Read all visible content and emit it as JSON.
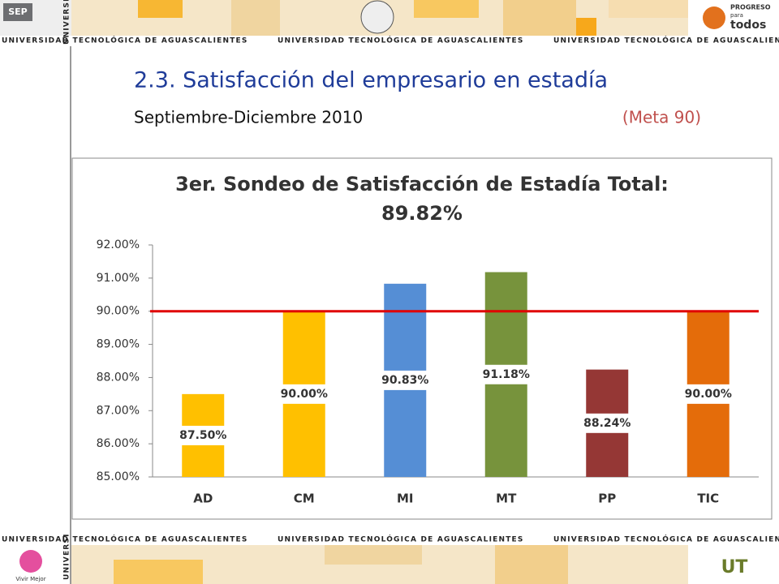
{
  "header": {
    "banner": "UNIVERSIDAD TECNOLÓGICA DE AGUASCALIENTES",
    "left_logo": "SEP",
    "right_logo": [
      "PROGRESO",
      "para",
      "todos"
    ],
    "bottom_logo": "Vivir Mejor"
  },
  "slide": {
    "title": "2.3. Satisfacción del empresario en estadía",
    "period": "Septiembre-Diciembre 2010",
    "goal": "(Meta 90)"
  },
  "chart_data": {
    "type": "bar",
    "title": [
      "3er. Sondeo de Satisfacción de Estadía Total:",
      "89.82%"
    ],
    "categories": [
      "AD",
      "CM",
      "MI",
      "MT",
      "PP",
      "TIC"
    ],
    "values": [
      87.5,
      90,
      90.83,
      91.18,
      88.24,
      90
    ],
    "value_labels": [
      "87.50%",
      "90.00%",
      "90.83%",
      "91.18%",
      "88.24%",
      "90.00%"
    ],
    "colors": [
      "#ffc000",
      "#ffc000",
      "#558ed5",
      "#77933c",
      "#953735",
      "#e46c0a"
    ],
    "ylim": [
      85,
      92
    ],
    "yticks": [
      {
        "value": 85,
        "label": "85.00%"
      },
      {
        "value": 86,
        "label": "86.00%"
      },
      {
        "value": 87,
        "label": "87.00%"
      },
      {
        "value": 88,
        "label": "88.00%"
      },
      {
        "value": 89,
        "label": "89.00%"
      },
      {
        "value": 90,
        "label": "90.00%"
      },
      {
        "value": 91,
        "label": "91.00%"
      },
      {
        "value": 92,
        "label": "92.00%"
      }
    ],
    "reference_line": 90,
    "reference_color": "#e00000"
  }
}
